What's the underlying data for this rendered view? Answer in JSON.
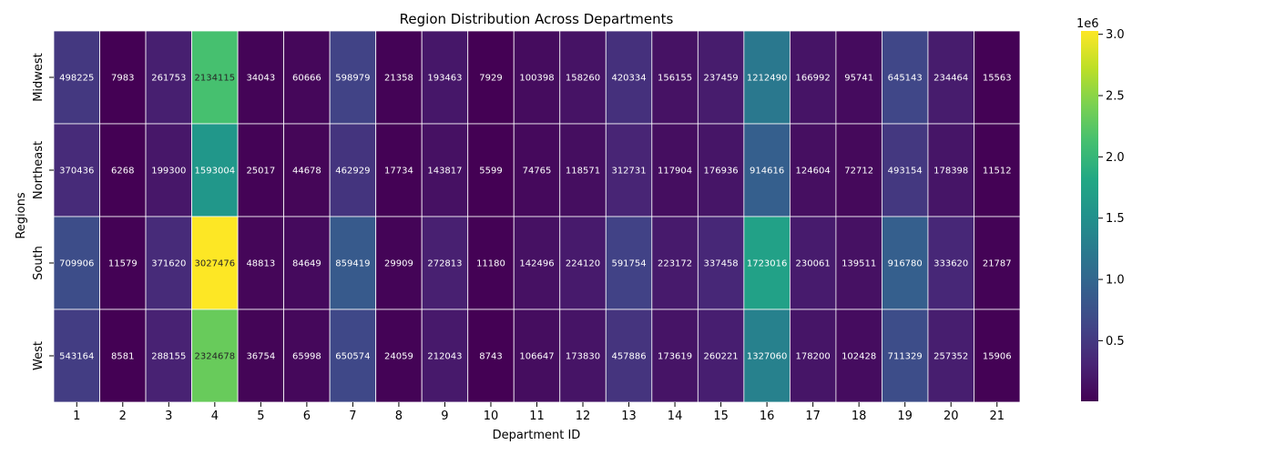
{
  "chart_data": {
    "type": "heatmap",
    "title": "Region Distribution Across Departments",
    "xlabel": "Department ID",
    "ylabel": "Regions",
    "x": [
      "1",
      "2",
      "3",
      "4",
      "5",
      "6",
      "7",
      "8",
      "9",
      "10",
      "11",
      "12",
      "13",
      "14",
      "15",
      "16",
      "17",
      "18",
      "19",
      "20",
      "21"
    ],
    "y": [
      "Midwest",
      "Northeast",
      "South",
      "West"
    ],
    "values": [
      [
        498225,
        7983,
        261753,
        2134115,
        34043,
        60666,
        598979,
        21358,
        193463,
        7929,
        100398,
        158260,
        420334,
        156155,
        237459,
        1212490,
        166992,
        95741,
        645143,
        234464,
        15563
      ],
      [
        370436,
        6268,
        199300,
        1593004,
        25017,
        44678,
        462929,
        17734,
        143817,
        5599,
        74765,
        118571,
        312731,
        117904,
        176936,
        914616,
        124604,
        72712,
        493154,
        178398,
        11512
      ],
      [
        709906,
        11579,
        371620,
        3027476,
        48813,
        84649,
        859419,
        29909,
        272813,
        11180,
        142496,
        224120,
        591754,
        223172,
        337458,
        1723016,
        230061,
        139511,
        916780,
        333620,
        21787
      ],
      [
        543164,
        8581,
        288155,
        2324678,
        36754,
        65998,
        650574,
        24059,
        212043,
        8743,
        106647,
        173830,
        457886,
        173619,
        260221,
        1327060,
        178200,
        102428,
        711329,
        257352,
        15906
      ]
    ],
    "colormap": "viridis",
    "colorbar": {
      "ticks": [
        0.5,
        1.0,
        1.5,
        2.0,
        2.5,
        3.0
      ],
      "tick_labels": [
        "0.5",
        "1.0",
        "1.5",
        "2.0",
        "2.5",
        "3.0"
      ],
      "multiplier_label": "1e6"
    },
    "legend": "none",
    "grid": false
  }
}
